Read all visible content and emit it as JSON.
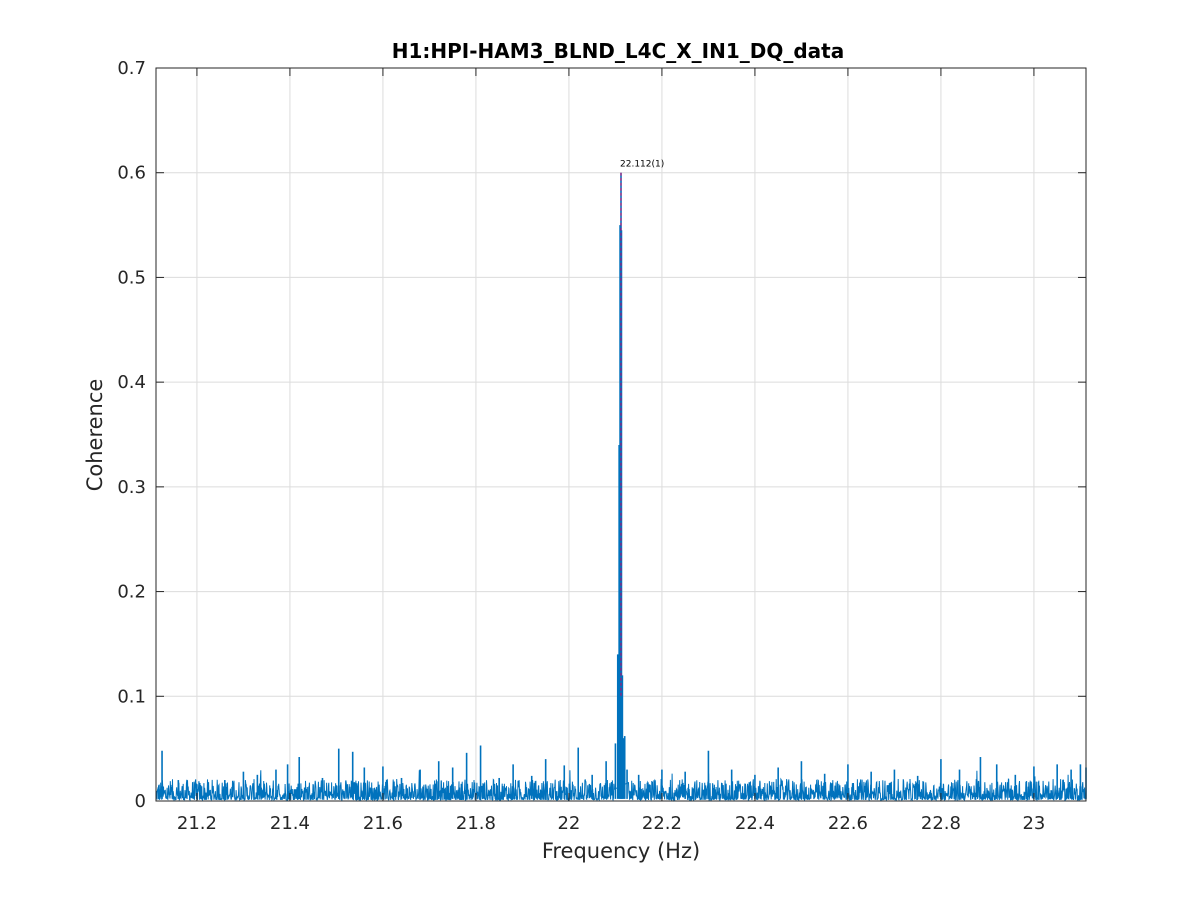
{
  "chart_data": {
    "type": "line",
    "title": "H1:HPI-HAM3_BLND_L4C_X_IN1_DQ_data",
    "xlabel": "Frequency (Hz)",
    "ylabel": "Coherence",
    "xlim": [
      21.112,
      23.112
    ],
    "ylim": [
      0,
      0.7
    ],
    "xticks": [
      21.2,
      21.4,
      21.6,
      21.8,
      22,
      22.2,
      22.4,
      22.6,
      22.8,
      23
    ],
    "xtick_labels": [
      "21.2",
      "21.4",
      "21.6",
      "21.8",
      "22",
      "22.2",
      "22.4",
      "22.6",
      "22.8",
      "23"
    ],
    "yticks": [
      0,
      0.1,
      0.2,
      0.3,
      0.4,
      0.5,
      0.6,
      0.7
    ],
    "ytick_labels": [
      "0",
      "0.1",
      "0.2",
      "0.3",
      "0.4",
      "0.5",
      "0.6",
      "0.7"
    ],
    "grid": true,
    "series": [
      {
        "color": "#0072bd",
        "x": [
          21.118,
          21.125,
          21.16,
          21.2,
          21.26,
          21.3,
          21.33,
          21.37,
          21.395,
          21.42,
          21.47,
          21.505,
          21.535,
          21.56,
          21.6,
          21.64,
          21.68,
          21.72,
          21.75,
          21.78,
          21.81,
          21.85,
          21.88,
          21.92,
          21.95,
          21.99,
          22.02,
          22.05,
          22.08,
          22.1,
          22.105,
          22.108,
          22.11,
          22.112,
          22.113,
          22.115,
          22.117,
          22.12,
          22.125,
          22.15,
          22.2,
          22.25,
          22.3,
          22.35,
          22.4,
          22.45,
          22.5,
          22.55,
          22.6,
          22.65,
          22.7,
          22.75,
          22.8,
          22.84,
          22.885,
          22.92,
          22.96,
          23.0,
          23.05,
          23.08,
          23.1,
          23.112
        ],
        "y": [
          0.015,
          0.048,
          0.02,
          0.016,
          0.02,
          0.028,
          0.025,
          0.03,
          0.035,
          0.042,
          0.022,
          0.05,
          0.047,
          0.032,
          0.033,
          0.022,
          0.03,
          0.038,
          0.032,
          0.046,
          0.053,
          0.022,
          0.035,
          0.024,
          0.04,
          0.034,
          0.051,
          0.025,
          0.038,
          0.055,
          0.14,
          0.34,
          0.55,
          0.6,
          0.545,
          0.12,
          0.06,
          0.062,
          0.03,
          0.025,
          0.03,
          0.028,
          0.048,
          0.03,
          0.025,
          0.032,
          0.038,
          0.026,
          0.035,
          0.028,
          0.03,
          0.024,
          0.04,
          0.03,
          0.042,
          0.035,
          0.025,
          0.033,
          0.035,
          0.03,
          0.035,
          0.032
        ]
      }
    ],
    "annotations": [
      {
        "text": "22.112(1)",
        "x": 22.112,
        "y": 0.6,
        "color": "#cc0066"
      }
    ]
  }
}
